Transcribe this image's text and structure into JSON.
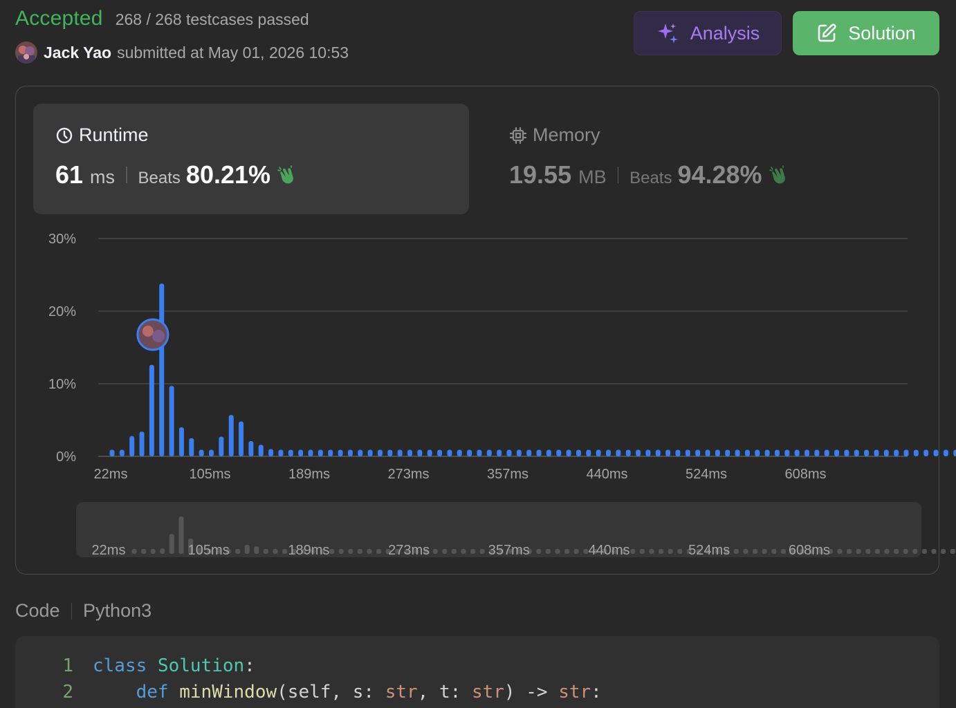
{
  "status": {
    "label": "Accepted",
    "testcases": "268 / 268 testcases passed"
  },
  "submission": {
    "author": "Jack Yao",
    "submitted_text": "submitted at May 01, 2026 10:53"
  },
  "buttons": {
    "analysis": "Analysis",
    "solution": "Solution"
  },
  "runtime": {
    "title": "Runtime",
    "value": "61",
    "unit": "ms",
    "beats_label": "Beats",
    "beats_value": "80.21%"
  },
  "memory": {
    "title": "Memory",
    "value": "19.55",
    "unit": "MB",
    "beats_label": "Beats",
    "beats_value": "94.28%"
  },
  "colors": {
    "accepted": "#3fb55c",
    "bar": "#3a7ef0",
    "analysis_text": "#a97cf5",
    "solution_bg": "#5ab46a"
  },
  "chart_data": {
    "type": "bar",
    "y_ticks": [
      "30%",
      "20%",
      "10%",
      "0%"
    ],
    "x_ticks": [
      "22ms",
      "105ms",
      "189ms",
      "273ms",
      "357ms",
      "440ms",
      "524ms",
      "608ms"
    ],
    "ylim": [
      0,
      30
    ],
    "grid": true,
    "user_bar_index": 4,
    "values": [
      0.9,
      0.9,
      2.8,
      3.4,
      12.6,
      23.8,
      9.7,
      4.0,
      2.5,
      0.9,
      0.9,
      2.7,
      5.7,
      4.8,
      2.1,
      1.6,
      1.0,
      0.9,
      0.9,
      0.9,
      0.9,
      0.9,
      0.9,
      0.9,
      0.9,
      0.9,
      0.9,
      0.9,
      0.9,
      0.9,
      0.9,
      0.9,
      0.9,
      0.9,
      0.9,
      0.9,
      0.9,
      0.9,
      0.9,
      0.9,
      0.9,
      0.9,
      0.9,
      0.9,
      0.9,
      0.9,
      0.9,
      0.9,
      0.9,
      0.9,
      0.9,
      0.9,
      0.9,
      0.9,
      0.9,
      0.9,
      0.9,
      0.9,
      0.9,
      0.9,
      0.9,
      0.9,
      0.9,
      0.9,
      0.9,
      0.9,
      0.9,
      0.9,
      0.9,
      0.9,
      0.9,
      0.9,
      0.9,
      0.9,
      0.9,
      0.9,
      0.9,
      0.9,
      0.9,
      0.9,
      0.9,
      0.9,
      0.9,
      0.9,
      0.9,
      0.9,
      0.9,
      0.9,
      0.9,
      0.9,
      0.9,
      0.9,
      0.9,
      0.9
    ]
  },
  "code": {
    "label": "Code",
    "language": "Python3",
    "lines": [
      {
        "n": "1",
        "tokens": [
          [
            "kw",
            "class "
          ],
          [
            "cls",
            "Solution"
          ],
          [
            "tx",
            ":"
          ]
        ]
      },
      {
        "n": "2",
        "tokens": [
          [
            "tx",
            "    "
          ],
          [
            "kw",
            "def "
          ],
          [
            "fn",
            "minWindow"
          ],
          [
            "tx",
            "(self, s: "
          ],
          [
            "ty",
            "str"
          ],
          [
            "tx",
            ", t: "
          ],
          [
            "ty",
            "str"
          ],
          [
            "tx",
            ") -> "
          ],
          [
            "ty",
            "str"
          ],
          [
            "tx",
            ":"
          ]
        ]
      }
    ]
  }
}
